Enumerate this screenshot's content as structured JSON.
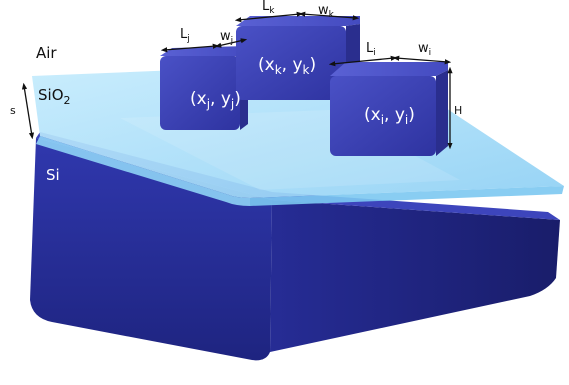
{
  "layers": {
    "air": "Air",
    "oxide": {
      "base": "SiO",
      "sub": "2"
    },
    "substrate": "Si"
  },
  "dims": {
    "s": "s",
    "H": "H",
    "Lj": {
      "base": "L",
      "sub": "j"
    },
    "wj": {
      "base": "w",
      "sub": "j"
    },
    "Lk": {
      "base": "L",
      "sub": "k"
    },
    "wk": {
      "base": "w",
      "sub": "k"
    },
    "Li": {
      "base": "L",
      "sub": "i"
    },
    "wi": {
      "base": "w",
      "sub": "i"
    }
  },
  "pillars": {
    "j": {
      "open": "(x",
      "sub1": "j",
      "mid": ", y",
      "sub2": "j",
      "close": ")"
    },
    "k": {
      "open": "(x",
      "sub1": "k",
      "mid": ", y",
      "sub2": "k",
      "close": ")"
    },
    "i": {
      "open": "(x",
      "sub1": "i",
      "mid": ", y",
      "sub2": "i",
      "close": ")"
    }
  },
  "colors": {
    "oxide_top": "#a9defa",
    "oxide_side": "#7fc8f2",
    "si_front": "#2f35a8",
    "si_side": "#1f247e",
    "pillar_front": "#3a40b4",
    "pillar_top": "#4a51c8",
    "pillar_side": "#292d8c"
  }
}
